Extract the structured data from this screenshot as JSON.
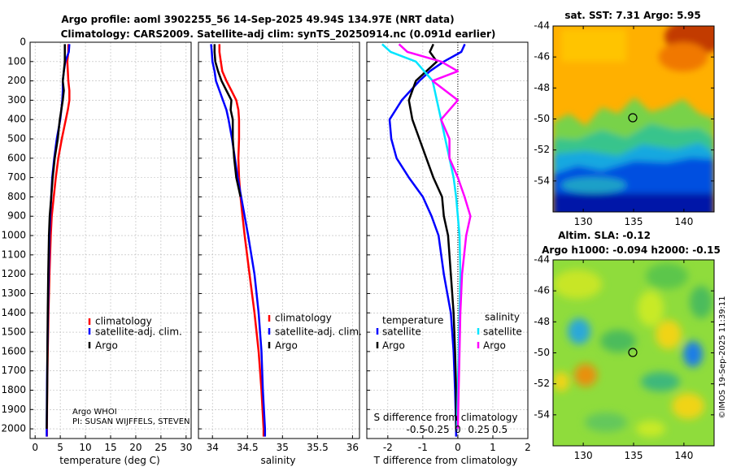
{
  "header": {
    "title_line1": "Argo profile: aoml 3902255_56 14-Sep-2025 49.94S 134.97E (NRT data)",
    "title_line2": "Climatology: CARS2009. Satellite-adj clim: synTS_20250914.nc (0.091d earlier)"
  },
  "colors": {
    "climatology": "#ff0000",
    "satellite": "#0000ff",
    "argo": "#000000",
    "sal_satellite": "#00e5ff",
    "sal_argo": "#ff00ff"
  },
  "credits": {
    "line1": "Argo WHOI",
    "line2": "PI: SUSAN WIJFFELS, STEVEN"
  },
  "watermark": "©IMOS 19-Sep-2025 11:39:11",
  "chart_data": [
    {
      "type": "line",
      "id": "temperature",
      "xlabel": "temperature (deg C)",
      "ylabel": "",
      "xlim": [
        -1,
        31
      ],
      "ylim": [
        2050,
        0
      ],
      "xticks": [
        "0",
        "5",
        "10",
        "15",
        "20",
        "25",
        "30"
      ],
      "yticks": [
        "0",
        "100",
        "200",
        "300",
        "400",
        "500",
        "600",
        "700",
        "800",
        "900",
        "1000",
        "1100",
        "1200",
        "1300",
        "1400",
        "1500",
        "1600",
        "1700",
        "1800",
        "1900",
        "2000"
      ],
      "legend": [
        "climatology",
        "satellite-adj. clim.",
        "Argo"
      ],
      "series": [
        {
          "name": "climatology",
          "depth": [
            10,
            50,
            100,
            150,
            200,
            250,
            300,
            350,
            400,
            500,
            600,
            700,
            800,
            900,
            1000,
            1200,
            1400,
            1600,
            1800,
            2000,
            2040
          ],
          "values": [
            6.6,
            6.6,
            6.4,
            6.5,
            6.6,
            6.8,
            6.8,
            6.5,
            6.1,
            5.3,
            4.6,
            4.1,
            3.7,
            3.3,
            3.1,
            2.85,
            2.65,
            2.5,
            2.4,
            2.35,
            2.35
          ]
        },
        {
          "name": "satellite-adj. clim.",
          "depth": [
            10,
            50,
            100,
            150,
            200,
            250,
            300,
            350,
            400,
            500,
            600,
            700,
            800,
            900,
            1000,
            1200,
            1400,
            1600,
            1800,
            2000,
            2040
          ],
          "values": [
            6.8,
            6.7,
            6.0,
            5.7,
            5.5,
            5.5,
            5.4,
            5.2,
            5.0,
            4.3,
            3.8,
            3.4,
            3.2,
            3.0,
            2.85,
            2.7,
            2.55,
            2.45,
            2.35,
            2.3,
            2.3
          ]
        },
        {
          "name": "Argo",
          "depth": [
            10,
            50,
            100,
            150,
            200,
            250,
            300,
            350,
            400,
            500,
            600,
            700,
            800,
            900,
            1000,
            1200,
            1400,
            1600,
            1800,
            2000
          ],
          "values": [
            5.9,
            5.9,
            5.9,
            5.7,
            5.5,
            5.7,
            5.5,
            5.2,
            4.9,
            4.5,
            3.9,
            3.5,
            3.2,
            2.9,
            2.75,
            2.6,
            2.5,
            2.45,
            2.4,
            2.3
          ]
        }
      ]
    },
    {
      "type": "line",
      "id": "salinity",
      "xlabel": "salinity",
      "ylabel": "",
      "xlim": [
        33.8,
        36.1
      ],
      "ylim": [
        2050,
        0
      ],
      "xticks": [
        "34",
        "34.5",
        "35",
        "35.5",
        "36"
      ],
      "legend": [
        "climatology",
        "satellite-adj. clim.",
        "Argo"
      ],
      "series": [
        {
          "name": "climatology",
          "depth": [
            10,
            50,
            100,
            150,
            200,
            250,
            300,
            350,
            400,
            500,
            600,
            700,
            800,
            900,
            1000,
            1200,
            1400,
            1600,
            1800,
            2000,
            2040
          ],
          "values": [
            34.1,
            34.1,
            34.12,
            34.14,
            34.2,
            34.27,
            34.34,
            34.37,
            34.38,
            34.38,
            34.37,
            34.38,
            34.4,
            34.43,
            34.46,
            34.53,
            34.6,
            34.66,
            34.7,
            34.73,
            34.73
          ]
        },
        {
          "name": "satellite-adj. clim.",
          "depth": [
            10,
            50,
            100,
            150,
            200,
            250,
            300,
            350,
            400,
            500,
            600,
            700,
            800,
            900,
            1000,
            1200,
            1400,
            1600,
            1800,
            2000,
            2040
          ],
          "values": [
            33.98,
            33.99,
            34.0,
            34.03,
            34.05,
            34.1,
            34.15,
            34.2,
            34.23,
            34.28,
            34.32,
            34.36,
            34.41,
            34.46,
            34.51,
            34.6,
            34.66,
            34.7,
            34.72,
            34.75,
            34.75
          ]
        },
        {
          "name": "Argo",
          "depth": [
            10,
            50,
            100,
            150,
            200,
            250,
            300,
            350,
            400,
            500,
            600,
            700,
            800
          ],
          "values": [
            34.03,
            34.03,
            34.04,
            34.08,
            34.13,
            34.2,
            34.27,
            34.26,
            34.29,
            34.29,
            34.31,
            34.34,
            34.4
          ]
        }
      ]
    },
    {
      "type": "line",
      "id": "differences",
      "xlabel": "T difference from climatology",
      "xlabel2": "S difference from climatology",
      "xlim": [
        -2.6,
        2.0
      ],
      "ylim": [
        2050,
        0
      ],
      "xticks": [
        "-2",
        "-1",
        "0",
        "1",
        "2"
      ],
      "xticks2": [
        "-0.5",
        "-0.25",
        "0",
        "0.25",
        "0.5"
      ],
      "legend_left": {
        "title": "temperature",
        "items": [
          "satellite",
          "Argo"
        ]
      },
      "legend_right": {
        "title": "salinity",
        "items": [
          "satellite",
          "Argo"
        ]
      },
      "series": [
        {
          "name": "temperature satellite",
          "depth": [
            10,
            50,
            100,
            150,
            200,
            300,
            400,
            500,
            600,
            700,
            800,
            900,
            1000,
            1200,
            1400,
            1600,
            1800,
            2000,
            2040
          ],
          "values": [
            0.2,
            0.1,
            -0.4,
            -0.8,
            -1.1,
            -1.6,
            -1.95,
            -1.9,
            -1.75,
            -1.4,
            -1.0,
            -0.75,
            -0.55,
            -0.4,
            -0.2,
            -0.12,
            -0.08,
            -0.05,
            -0.05
          ]
        },
        {
          "name": "temperature Argo",
          "depth": [
            10,
            50,
            100,
            150,
            200,
            300,
            400,
            500,
            600,
            700,
            800,
            900,
            1000,
            1200,
            1400,
            1600,
            1800,
            2000
          ],
          "values": [
            -0.7,
            -0.8,
            -0.6,
            -0.9,
            -1.2,
            -1.4,
            -1.3,
            -1.1,
            -0.9,
            -0.7,
            -0.45,
            -0.4,
            -0.28,
            -0.2,
            -0.12,
            -0.08,
            -0.05,
            -0.05
          ]
        },
        {
          "name": "salinity satellite",
          "depth": [
            10,
            50,
            100,
            150,
            200,
            300,
            400,
            500,
            600,
            700,
            800,
            900,
            1000,
            1200,
            1400,
            1600,
            1800,
            2000
          ],
          "values": [
            -0.9,
            -0.8,
            -0.5,
            -0.4,
            -0.3,
            -0.25,
            -0.2,
            -0.15,
            -0.1,
            -0.05,
            -0.02,
            0.0,
            0.02,
            0.03,
            0.02,
            0.01,
            0.0,
            -0.01
          ]
        },
        {
          "name": "salinity Argo",
          "depth": [
            10,
            50,
            100,
            150,
            200,
            300,
            400,
            500,
            600,
            700,
            800,
            900,
            1000,
            1200,
            1400,
            1600,
            1800,
            2000
          ],
          "values": [
            -0.7,
            -0.6,
            -0.2,
            0.0,
            -0.3,
            0.0,
            -0.2,
            -0.1,
            -0.1,
            0.0,
            0.08,
            0.15,
            0.1,
            0.05,
            0.03,
            0.02,
            0.01,
            0.0
          ]
        }
      ]
    },
    {
      "type": "heatmap",
      "id": "sst_map",
      "title": "sat. SST: 7.31 Argo: 5.95",
      "xlim": [
        127,
        143
      ],
      "ylim": [
        -56,
        -44
      ],
      "xticks": [
        "130",
        "135",
        "140"
      ],
      "yticks": [
        "-44",
        "-46",
        "-48",
        "-50",
        "-52",
        "-54"
      ],
      "argo_position": {
        "lon": 134.97,
        "lat": -49.94
      }
    },
    {
      "type": "heatmap",
      "id": "sla_map",
      "title_line1": "Altim. SLA: -0.12",
      "title_line2": "Argo h1000: -0.094 h2000: -0.15",
      "xlim": [
        127,
        143
      ],
      "ylim": [
        -56,
        -44
      ],
      "xticks": [
        "130",
        "135",
        "140"
      ],
      "yticks": [
        "-44",
        "-46",
        "-48",
        "-50",
        "-52",
        "-54"
      ],
      "argo_position": {
        "lon": 134.97,
        "lat": -49.94
      }
    }
  ]
}
